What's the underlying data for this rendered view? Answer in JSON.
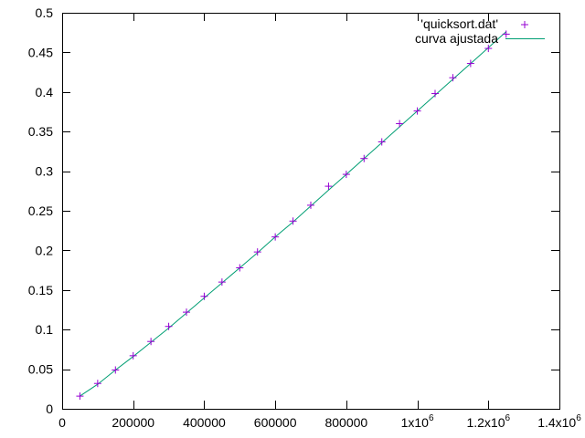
{
  "chart_data": {
    "type": "scatter",
    "xlim": [
      0,
      1400000
    ],
    "ylim": [
      0,
      0.5
    ],
    "x_ticks": [
      {
        "value": 0,
        "label": "0"
      },
      {
        "value": 200000,
        "label": "200000"
      },
      {
        "value": 400000,
        "label": "400000"
      },
      {
        "value": 600000,
        "label": "600000"
      },
      {
        "value": 800000,
        "label": "800000"
      },
      {
        "value": 1000000,
        "label": "1x10",
        "exp": "6"
      },
      {
        "value": 1200000,
        "label": "1.2x10",
        "exp": "6"
      },
      {
        "value": 1400000,
        "label": "1.4x10",
        "exp": "6"
      }
    ],
    "y_ticks": [
      {
        "value": 0,
        "label": "0"
      },
      {
        "value": 0.05,
        "label": "0.05"
      },
      {
        "value": 0.1,
        "label": "0.1"
      },
      {
        "value": 0.15,
        "label": "0.15"
      },
      {
        "value": 0.2,
        "label": "0.2"
      },
      {
        "value": 0.25,
        "label": "0.25"
      },
      {
        "value": 0.3,
        "label": "0.3"
      },
      {
        "value": 0.35,
        "label": "0.35"
      },
      {
        "value": 0.4,
        "label": "0.4"
      },
      {
        "value": 0.45,
        "label": "0.45"
      },
      {
        "value": 0.5,
        "label": "0.5"
      }
    ],
    "grid": false,
    "legend_position": "top-right",
    "series": [
      {
        "name": "'quicksort.dat'",
        "style": "points",
        "marker": "+",
        "color": "#9400d3",
        "x": [
          50000,
          100000,
          150000,
          200000,
          250000,
          300000,
          350000,
          400000,
          450000,
          500000,
          550000,
          600000,
          650000,
          700000,
          750000,
          800000,
          850000,
          900000,
          950000,
          1000000,
          1050000,
          1100000,
          1150000,
          1200000,
          1250000
        ],
        "y": [
          0.016,
          0.032,
          0.049,
          0.067,
          0.085,
          0.104,
          0.122,
          0.142,
          0.16,
          0.178,
          0.198,
          0.217,
          0.237,
          0.257,
          0.281,
          0.296,
          0.316,
          0.337,
          0.36,
          0.376,
          0.398,
          0.418,
          0.436,
          0.455,
          0.473
        ]
      },
      {
        "name": "curva ajustada",
        "style": "line",
        "color": "#009e73",
        "x": [
          50000,
          100000,
          150000,
          200000,
          250000,
          300000,
          350000,
          400000,
          450000,
          500000,
          550000,
          600000,
          650000,
          700000,
          750000,
          800000,
          850000,
          900000,
          950000,
          1000000,
          1050000,
          1100000,
          1150000,
          1200000,
          1250000
        ],
        "y": [
          0.016,
          0.031,
          0.049,
          0.066,
          0.084,
          0.102,
          0.121,
          0.14,
          0.159,
          0.178,
          0.197,
          0.217,
          0.236,
          0.256,
          0.276,
          0.296,
          0.316,
          0.336,
          0.356,
          0.376,
          0.396,
          0.416,
          0.436,
          0.456,
          0.476
        ]
      }
    ]
  }
}
